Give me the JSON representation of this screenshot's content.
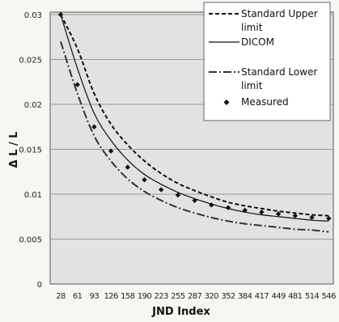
{
  "chart_data": {
    "type": "line",
    "xlabel": "JND Index",
    "ylabel": "Δ L / L",
    "ylim": [
      0,
      0.03
    ],
    "y_ticks": [
      "0",
      "0.005",
      "0.01",
      "0.015",
      "0.02",
      "0.025",
      "0.03"
    ],
    "categories": [
      "28",
      "61",
      "93",
      "126",
      "158",
      "190",
      "223",
      "255",
      "287",
      "320",
      "352",
      "384",
      "417",
      "449",
      "481",
      "514",
      "546"
    ],
    "grid": "horizontal",
    "legend_position": "top-right",
    "series": [
      {
        "name": "Standard Upper limit",
        "style": "dashed",
        "color": "#111111",
        "values": [
          0.03,
          0.0262,
          0.0212,
          0.0178,
          0.0155,
          0.0137,
          0.0123,
          0.0112,
          0.0104,
          0.0097,
          0.0091,
          0.0087,
          0.0084,
          0.0081,
          0.0079,
          0.0077,
          0.0076
        ]
      },
      {
        "name": "DICOM",
        "style": "solid",
        "color": "#111111",
        "values": [
          0.03,
          0.024,
          0.019,
          0.016,
          0.0138,
          0.0122,
          0.0111,
          0.0102,
          0.0095,
          0.0089,
          0.0084,
          0.008,
          0.0077,
          0.0075,
          0.0073,
          0.0071,
          0.007
        ]
      },
      {
        "name": "Standard Lower limit",
        "style": "dash-dot",
        "color": "#333333",
        "values": [
          0.027,
          0.0212,
          0.0165,
          0.0137,
          0.0117,
          0.0103,
          0.0093,
          0.0085,
          0.0079,
          0.0074,
          0.007,
          0.0067,
          0.0065,
          0.0063,
          0.0061,
          0.006,
          0.0058
        ]
      },
      {
        "name": "Measured",
        "style": "markers",
        "color": "#111111",
        "values": [
          0.03,
          0.0222,
          0.0175,
          0.0148,
          0.013,
          0.0116,
          0.0105,
          0.0099,
          0.0093,
          0.0088,
          0.0085,
          0.0082,
          0.008,
          0.0078,
          0.0076,
          0.0074,
          0.0073
        ]
      }
    ]
  }
}
